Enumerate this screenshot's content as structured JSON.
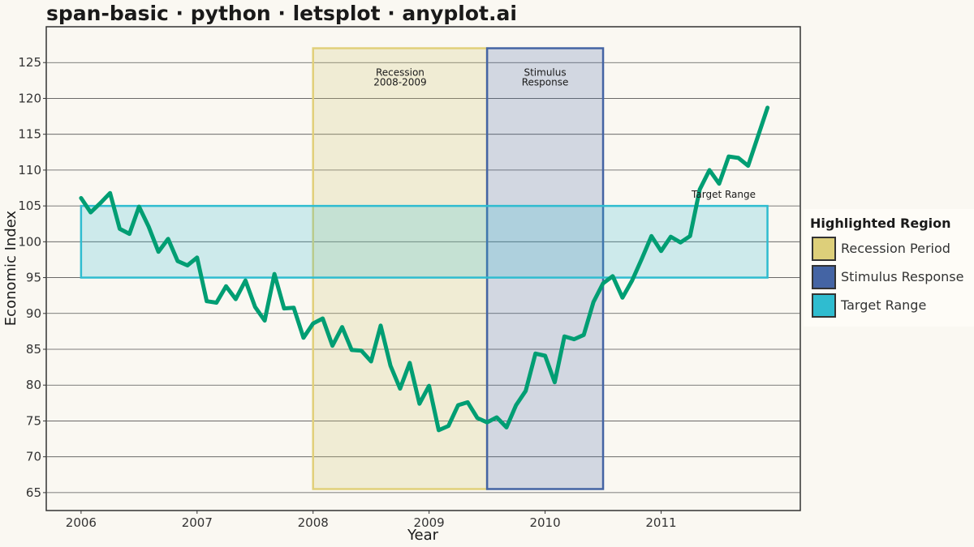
{
  "title": "span-basic · python · letsplot · anyplot.ai",
  "chart_data": {
    "type": "line",
    "xlabel": "Year",
    "ylabel": "Economic Index",
    "xlim": [
      2005.7,
      2012.2
    ],
    "ylim": [
      62.5,
      130
    ],
    "xticks": [
      2006,
      2007,
      2008,
      2009,
      2010,
      2011
    ],
    "yticks": [
      65,
      70,
      75,
      80,
      85,
      90,
      95,
      100,
      105,
      110,
      115,
      120,
      125
    ],
    "grid": "horizontal",
    "legend_position": "right",
    "line_color": "#009e73",
    "series": [
      {
        "x": [
          2006.0,
          2006.083,
          2006.167,
          2006.25,
          2006.333,
          2006.417,
          2006.5,
          2006.583,
          2006.667,
          2006.75,
          2006.833,
          2006.917,
          2007.0,
          2007.083,
          2007.167,
          2007.25,
          2007.333,
          2007.417,
          2007.5,
          2007.583,
          2007.667,
          2007.75,
          2007.833,
          2007.917,
          2008.0,
          2008.083,
          2008.167,
          2008.25,
          2008.333,
          2008.417,
          2008.5,
          2008.583,
          2008.667,
          2008.75,
          2008.833,
          2008.917,
          2009.0,
          2009.083,
          2009.167,
          2009.25,
          2009.333,
          2009.417,
          2009.5,
          2009.583,
          2009.667,
          2009.75,
          2009.833,
          2009.917,
          2010.0,
          2010.083,
          2010.167,
          2010.25,
          2010.333,
          2010.417,
          2010.5,
          2010.583,
          2010.667,
          2010.75,
          2010.833,
          2010.917,
          2011.0,
          2011.083,
          2011.167,
          2011.25,
          2011.333,
          2011.417,
          2011.5,
          2011.583,
          2011.667,
          2011.75,
          2011.833,
          2011.917
        ],
        "y": [
          106.1,
          104.1,
          105.4,
          106.8,
          101.8,
          101.1,
          104.9,
          102.1,
          98.6,
          100.4,
          97.3,
          96.7,
          97.8,
          91.7,
          91.5,
          93.8,
          92.0,
          94.6,
          90.9,
          89.0,
          95.5,
          90.7,
          90.8,
          86.6,
          88.6,
          89.3,
          85.5,
          88.1,
          84.9,
          84.8,
          83.3,
          88.3,
          82.7,
          79.5,
          83.1,
          77.4,
          79.9,
          73.7,
          74.3,
          77.2,
          77.6,
          75.4,
          74.8,
          75.5,
          74.1,
          77.2,
          79.2,
          84.4,
          84.1,
          80.4,
          86.8,
          86.4,
          87.0,
          91.6,
          94.2,
          95.2,
          92.2,
          94.6,
          97.6,
          100.8,
          98.7,
          100.7,
          99.9,
          100.8,
          107.3,
          110.0,
          108.1,
          111.9,
          111.7,
          110.6,
          114.6,
          118.7
        ]
      }
    ],
    "spans": [
      {
        "name": "Recession Period",
        "label": "Recession\n2008-2009",
        "orientation": "vertical",
        "x0": 2008.0,
        "x1": 2009.5,
        "fill": "#d4c97a",
        "stroke": "#e1d07a",
        "opacity": 0.25
      },
      {
        "name": "Stimulus Response",
        "label": "Stimulus\nResponse",
        "orientation": "vertical",
        "x0": 2009.5,
        "x1": 2010.5,
        "fill": "#4464a4",
        "stroke": "#4464a4",
        "opacity": 0.22
      },
      {
        "name": "Target Range",
        "label": "Target Range",
        "orientation": "horizontal",
        "y0": 95,
        "y1": 105,
        "x0": 2006.0,
        "x1": 2011.917,
        "fill": "#2fbcd0",
        "stroke": "#2fbcd0",
        "opacity": 0.22
      }
    ]
  },
  "legend": {
    "title": "Highlighted Region",
    "items": [
      {
        "label": "Recession Period",
        "color": "#ddcf7a"
      },
      {
        "label": "Stimulus Response",
        "color": "#4464a4"
      },
      {
        "label": "Target Range",
        "color": "#2fbcd0"
      }
    ]
  }
}
